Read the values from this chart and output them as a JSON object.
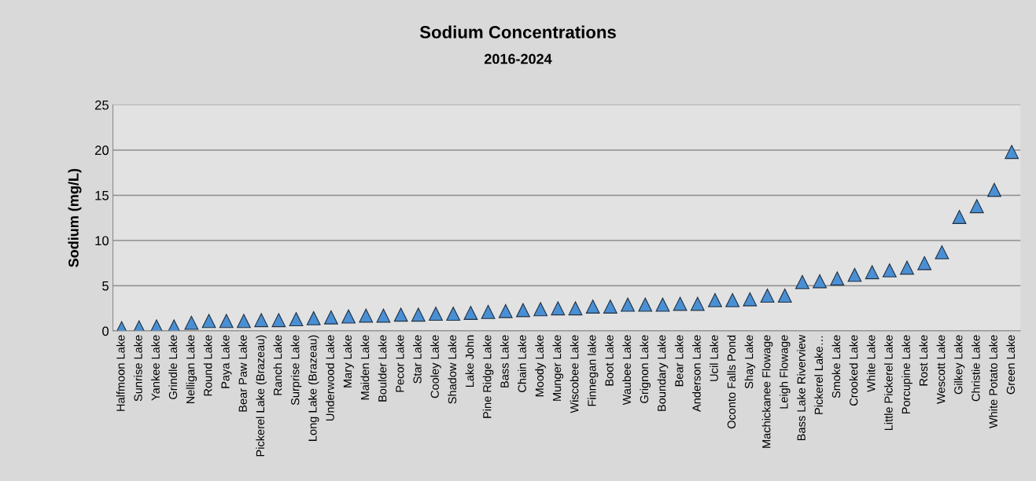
{
  "chart_data": {
    "type": "scatter",
    "title": "Sodium Concentrations",
    "subtitle": "2016-2024",
    "ylabel": "Sodium (mg/L)",
    "categories": [
      "Halfmoon Lake",
      "Sunrise Lake",
      "Yankee Lake",
      "Grindle Lake",
      "Nelligan Lake",
      "Round Lake",
      "Paya Lake",
      "Bear Paw Lake",
      "Pickerel Lake (Brazeau)",
      "Ranch Lake",
      "Surprise Lake",
      "Long Lake (Brazeau)",
      "Underwood Lake",
      "Mary Lake",
      "Maiden Lake",
      "Boulder Lake",
      "Pecor Lake",
      "Star Lake",
      "Cooley Lake",
      "Shadow Lake",
      "Lake John",
      "Pine Ridge Lake",
      "Bass Lake",
      "Chain Lake",
      "Moody Lake",
      "Munger Lake",
      "Wiscobee Lake",
      "Finnegan lake",
      "Boot Lake",
      "Waubee Lake",
      "Grignon Lake",
      "Boundary Lake",
      "Bear Lake",
      "Anderson Lake",
      "Ucil Lake",
      "Oconto Falls Pond",
      "Shay Lake",
      "Machickanee Flowage",
      "Leigh Flowage",
      "Bass Lake Riverview",
      "Pickerel Lake…",
      "Smoke Lake",
      "Crooked Lake",
      "White Lake",
      "Little Pickerel Lake",
      "Porcupine Lake",
      "Rost Lake",
      "Wescott Lake",
      "Gilkey Lake",
      "Christie Lake",
      "White Potato Lake",
      "Green Lake"
    ],
    "values": [
      0.3,
      0.4,
      0.5,
      0.5,
      0.9,
      1.1,
      1.1,
      1.1,
      1.2,
      1.2,
      1.3,
      1.4,
      1.5,
      1.6,
      1.7,
      1.7,
      1.8,
      1.8,
      1.9,
      1.9,
      2.0,
      2.1,
      2.2,
      2.3,
      2.4,
      2.5,
      2.5,
      2.7,
      2.7,
      2.9,
      2.9,
      2.9,
      3.0,
      3.0,
      3.4,
      3.4,
      3.5,
      3.9,
      3.9,
      5.4,
      5.5,
      5.8,
      6.2,
      6.5,
      6.7,
      7.0,
      7.5,
      8.7,
      12.6,
      13.8,
      15.6,
      19.8
    ],
    "color": "#4a8fd3",
    "marker": "triangle",
    "ylim": [
      0,
      25
    ],
    "yticks": [
      0,
      5,
      10,
      15,
      20,
      25
    ],
    "grid": "y",
    "legend": false
  }
}
